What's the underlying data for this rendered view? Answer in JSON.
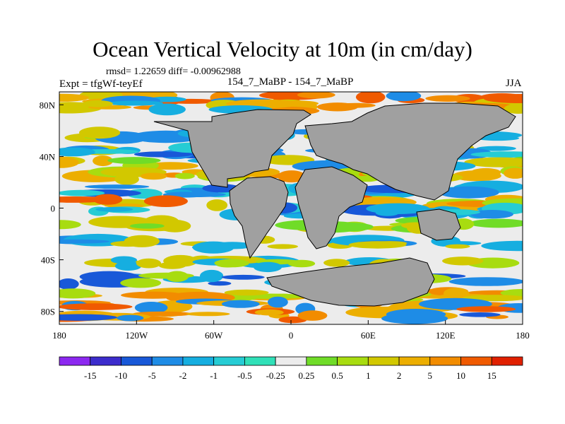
{
  "title": "Ocean Vertical Velocity at 10m (in cm/day)",
  "stats": "rmsd= 1.22659 diff= -0.00962988",
  "expt": "Expt = tfgWf-teyEf",
  "runs": "154_7_MaBP - 154_7_MaBP",
  "season": "JJA",
  "lat_ticks": [
    "80N",
    "40N",
    "0",
    "40S",
    "80S"
  ],
  "lon_ticks": [
    "180",
    "120W",
    "60W",
    "0",
    "60E",
    "120E",
    "180"
  ],
  "land_color": "#a0a0a0",
  "colorbar": {
    "labels": [
      "-15",
      "-10",
      "-5",
      "-2",
      "-1",
      "-0.5",
      "-0.25",
      "0.25",
      "0.5",
      "1",
      "2",
      "5",
      "10",
      "15"
    ],
    "colors": [
      "#8c28f0",
      "#3c2ccc",
      "#1858d8",
      "#1e8ce6",
      "#16aee0",
      "#26ccd4",
      "#30e0b8",
      "#ececec",
      "#70dc28",
      "#a8dc10",
      "#d2c800",
      "#ecae00",
      "#f28c00",
      "#f05a00",
      "#e02000"
    ]
  }
}
